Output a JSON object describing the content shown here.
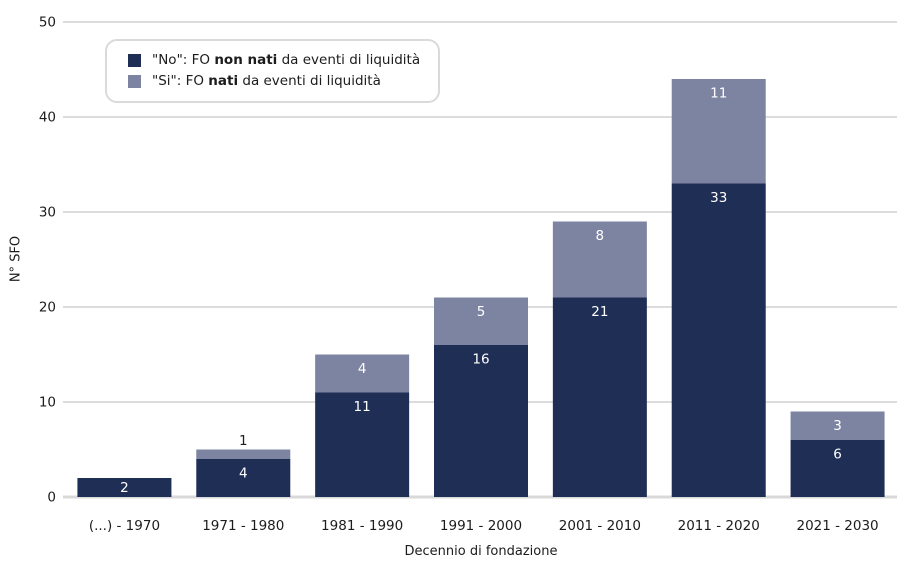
{
  "chart_data": {
    "type": "bar",
    "stacked": true,
    "title": "",
    "xlabel": "Decennio di fondazione",
    "ylabel": "N° SFO",
    "categories": [
      "(...) - 1970",
      "1971 - 1980",
      "1981 - 1990",
      "1991 - 2000",
      "2001 - 2010",
      "2011 - 2020",
      "2021 - 2030"
    ],
    "series": [
      {
        "name": "\"No\": FO non nati da eventi di liquidità",
        "values": [
          2,
          4,
          11,
          16,
          21,
          33,
          6
        ],
        "color": "#1f2e55"
      },
      {
        "name": "\"Si\": FO nati da eventi di liquidità",
        "values": [
          0,
          1,
          4,
          5,
          8,
          11,
          3
        ],
        "color": "#7d84a2"
      }
    ],
    "totals": [
      2,
      5,
      15,
      21,
      29,
      44,
      9
    ],
    "ylim": [
      0,
      50
    ],
    "yticks": [
      0,
      10,
      20,
      30,
      40,
      50
    ],
    "grid": true,
    "legend_position": "top-left",
    "grid_color": "#dcdcdc",
    "baseline_color": "#d9d9d9",
    "value_label_color_inside": "#ffffff",
    "value_label_color_outside": "#1c1c1c",
    "tick_label_color": "#1c1c1c"
  },
  "legend": {
    "items": [
      {
        "prefix": "\"No\": FO ",
        "bold": "non nati",
        "suffix": " da eventi di liquidità",
        "color": "#1f2e55"
      },
      {
        "prefix": "\"Si\": FO ",
        "bold": "nati",
        "suffix": " da eventi di liquidità",
        "color": "#7d84a2"
      }
    ]
  }
}
